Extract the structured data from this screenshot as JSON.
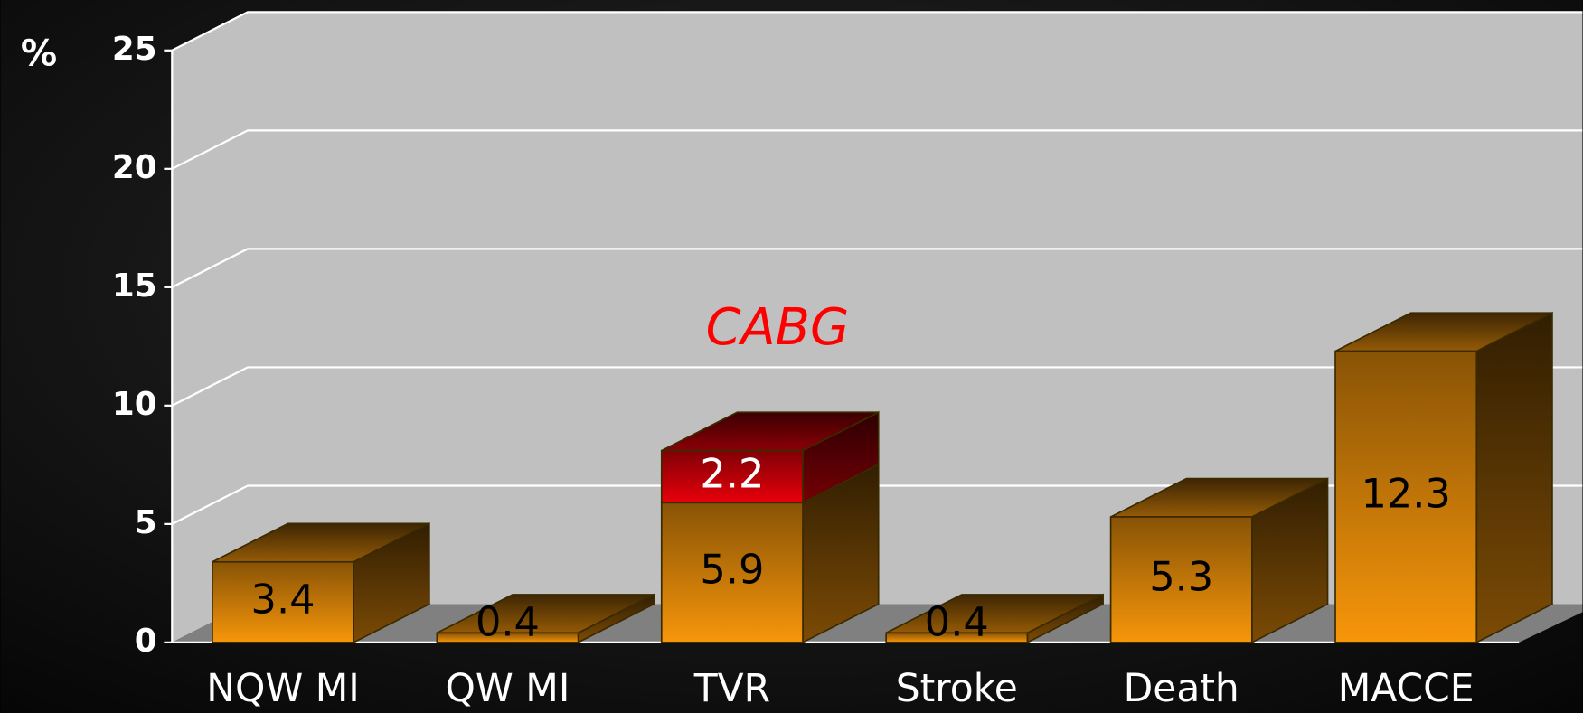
{
  "chart_data": {
    "type": "bar",
    "stacked": true,
    "annotation": "CABG",
    "y_label": "%",
    "categories": [
      "NQW MI",
      "QW MI",
      "TVR",
      "Stroke",
      "Death",
      "MACCE"
    ],
    "series": [
      {
        "color": "#f7960a",
        "values": [
          3.4,
          0.4,
          5.9,
          0.4,
          5.3,
          12.3
        ]
      },
      {
        "color": "#e8000a",
        "values": [
          null,
          null,
          2.2,
          null,
          null,
          null
        ]
      }
    ],
    "ylim": [
      0,
      25
    ],
    "yticks": [
      0,
      5,
      10,
      15,
      20,
      25
    ],
    "grid": true
  }
}
